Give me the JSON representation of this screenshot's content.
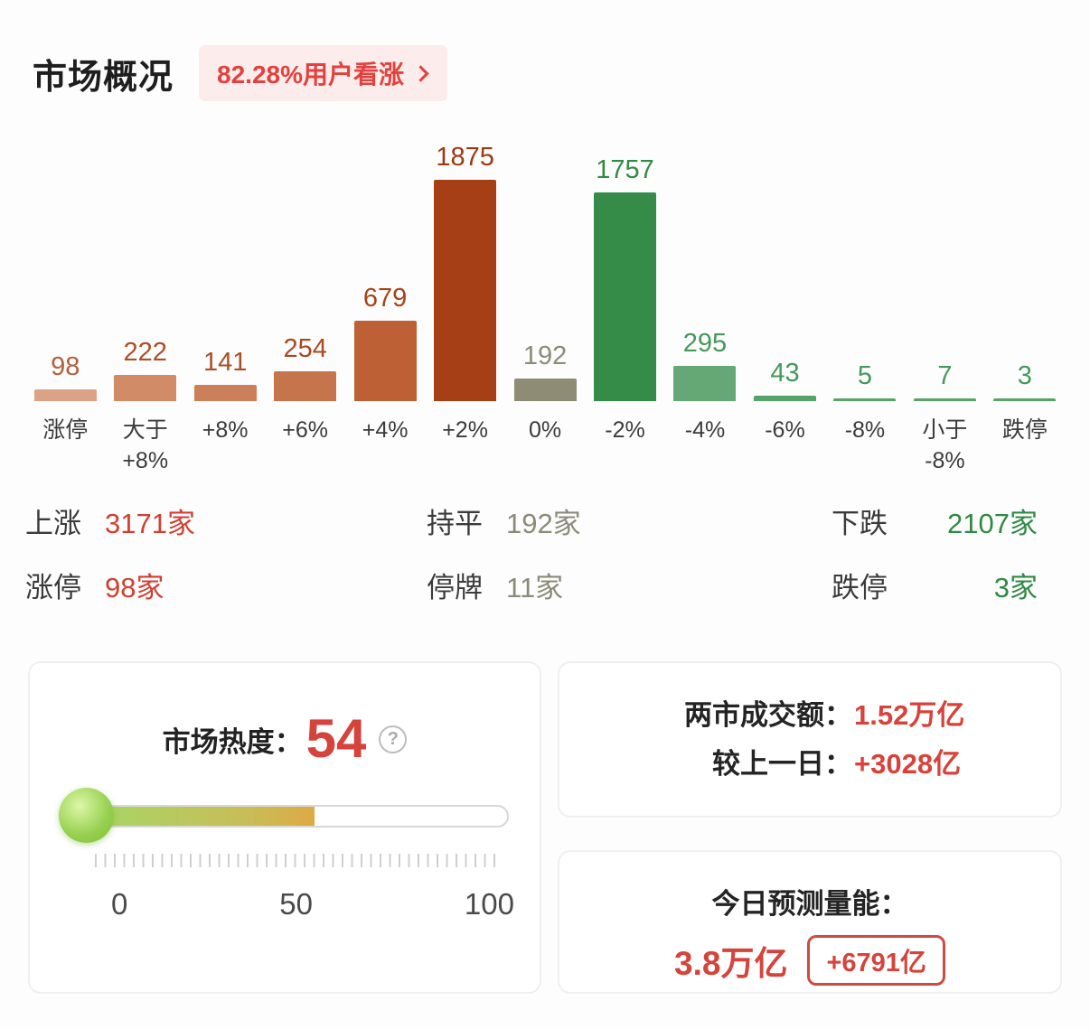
{
  "colors": {
    "accent_red": "#e2413d",
    "badge_bg": "#fdecec",
    "up_red": "#cf4031",
    "down_green": "#2f8a43",
    "flat_gray": "#8b8b78",
    "heat_value_red": "#d5443c"
  },
  "header": {
    "title": "市场概况",
    "badge_label": "82.28%用户看涨"
  },
  "chart_data": {
    "type": "bar",
    "title": "",
    "xlabel": "",
    "ylabel": "",
    "ylim": [
      0,
      1875
    ],
    "grid": false,
    "legend": "none",
    "categories": [
      "涨停",
      "大于\n+8%",
      "+8%",
      "+6%",
      "+4%",
      "+2%",
      "0%",
      "-2%",
      "-4%",
      "-6%",
      "-8%",
      "小于\n-8%",
      "跌停"
    ],
    "values": [
      98,
      222,
      141,
      254,
      679,
      1875,
      192,
      1757,
      295,
      43,
      5,
      7,
      3
    ],
    "bar_colors": [
      "#dca285",
      "#d18b66",
      "#cc8059",
      "#c5744b",
      "#bd6036",
      "#a63e16",
      "#8e8c74",
      "#348c48",
      "#65a875",
      "#55a366",
      "#55a366",
      "#55a366",
      "#55a366"
    ],
    "label_colors": [
      "#b2603a",
      "#aa4f26",
      "#aa4f26",
      "#a8491f",
      "#a4431a",
      "#9d3810",
      "#8b8b78",
      "#2f8a43",
      "#46985a",
      "#46985a",
      "#46985a",
      "#46985a",
      "#46985a"
    ]
  },
  "stats": {
    "up": {
      "label": "上涨",
      "value": "3171家"
    },
    "flat": {
      "label": "持平",
      "value": "192家"
    },
    "down": {
      "label": "下跌",
      "value": "2107家"
    },
    "limit_up": {
      "label": "涨停",
      "value": "98家"
    },
    "suspended": {
      "label": "停牌",
      "value": "11家"
    },
    "limit_down": {
      "label": "跌停",
      "value": "3家"
    }
  },
  "heat": {
    "label": "市场热度：",
    "value": "54",
    "percent": 54,
    "help_glyph": "?",
    "scale": [
      "0",
      "50",
      "100"
    ]
  },
  "turnover": {
    "label": "两市成交额：",
    "value": "1.52万亿",
    "change_label": "较上一日：",
    "change_value": "+3028亿"
  },
  "forecast": {
    "label": "今日预测量能：",
    "value": "3.8万亿",
    "badge": "+6791亿"
  }
}
